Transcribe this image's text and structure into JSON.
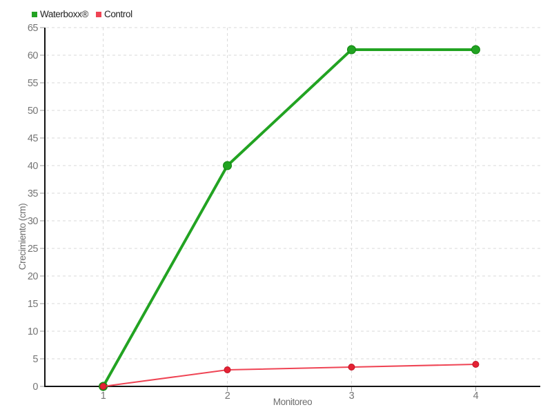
{
  "chart_data": {
    "type": "line",
    "title": "",
    "xlabel": "Monitoreo",
    "ylabel": "Crecimiento (cm)",
    "x": [
      1,
      2,
      3,
      4
    ],
    "xticks": [
      1,
      2,
      3,
      4
    ],
    "yticks": [
      0,
      5,
      10,
      15,
      20,
      25,
      30,
      35,
      40,
      45,
      50,
      55,
      60,
      65
    ],
    "ylim": [
      0,
      65
    ],
    "xlim": [
      0.53,
      4.52
    ],
    "grid": true,
    "legend_position": "top-left",
    "series": [
      {
        "name": "Waterboxx®",
        "values": [
          0,
          40,
          61,
          61
        ],
        "color": "#22a322",
        "marker_color": "#22a322",
        "marker_edge": "#0e850e",
        "line_width": 4,
        "marker_radius": 6
      },
      {
        "name": "Control",
        "values": [
          0,
          3,
          3.5,
          4
        ],
        "color": "#ef4454",
        "marker_color": "#e42234",
        "marker_edge": "#c01325",
        "line_width": 2,
        "marker_radius": 4.5
      }
    ]
  },
  "style": {
    "axis_line_color": "#111111",
    "tick_color": "#999999",
    "tick_label_color": "#757575",
    "grid_color": "#d9d9d9",
    "axis_title_color": "#6e6e6e",
    "legend_text_color": "#222222",
    "background": "#ffffff"
  }
}
